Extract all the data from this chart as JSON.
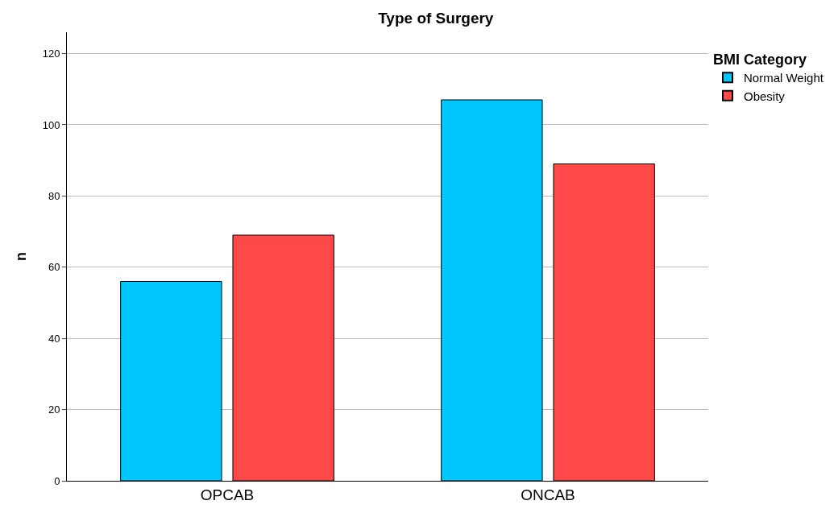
{
  "chart_data": {
    "type": "bar",
    "title": "Type of Surgery",
    "ylabel": "n",
    "legend_title": "BMI Category",
    "categories": [
      "OPCAB",
      "ONCAB"
    ],
    "series": [
      {
        "name": "Normal Weight",
        "color": "#00c8ff",
        "values": [
          56,
          107
        ]
      },
      {
        "name": "Obesity",
        "color": "#ff4848",
        "values": [
          69,
          89
        ]
      }
    ],
    "ylim": [
      0,
      126
    ],
    "yticks": [
      0,
      20,
      40,
      60,
      80,
      100,
      120
    ],
    "grid": "y",
    "legend": "top right"
  }
}
